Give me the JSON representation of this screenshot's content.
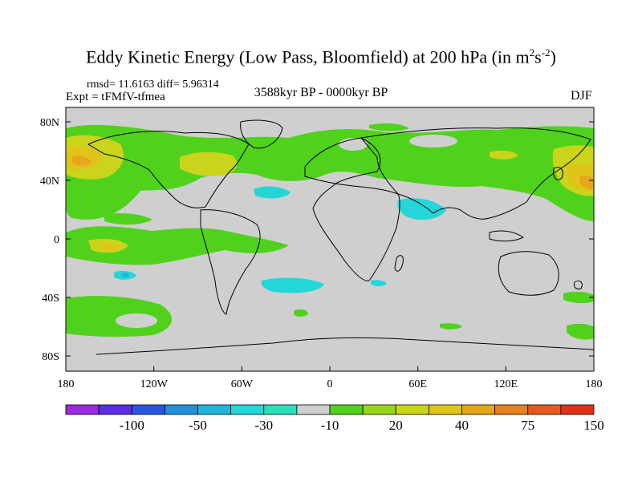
{
  "title": {
    "main": "Eddy Kinetic Energy (Low Pass, Bloomfield) at 200 hPa (in m",
    "sup1": "2",
    "mid": "s",
    "sup2": "-2",
    "end": ")"
  },
  "stats": "rmsd= 11.6163 diff= 5.96314",
  "expt": "Expt = tFMfV-tfmea",
  "period": "3588kyr BP - 0000kyr BP",
  "season": "DJF",
  "lat_labels": [
    "80N",
    "40N",
    "0",
    "40S",
    "80S"
  ],
  "lon_labels": [
    "180",
    "120W",
    "60W",
    "0",
    "60E",
    "120E",
    "180"
  ],
  "colorbar": {
    "labels": [
      "-100",
      "-50",
      "-30",
      "-10",
      "20",
      "40",
      "75",
      "150"
    ],
    "colors": [
      "#9a2be0",
      "#5a2ee0",
      "#2a55e0",
      "#2390dc",
      "#22b5dc",
      "#24d6d8",
      "#2ae0b8",
      "#cfcfcf",
      "#50d21c",
      "#9ad61c",
      "#cad41a",
      "#e0c41a",
      "#e6a61c",
      "#e6801e",
      "#e45a1e",
      "#e03218"
    ]
  },
  "colors": {
    "land_ocean_zero": "#cfcfcf",
    "coast": "#000000"
  }
}
